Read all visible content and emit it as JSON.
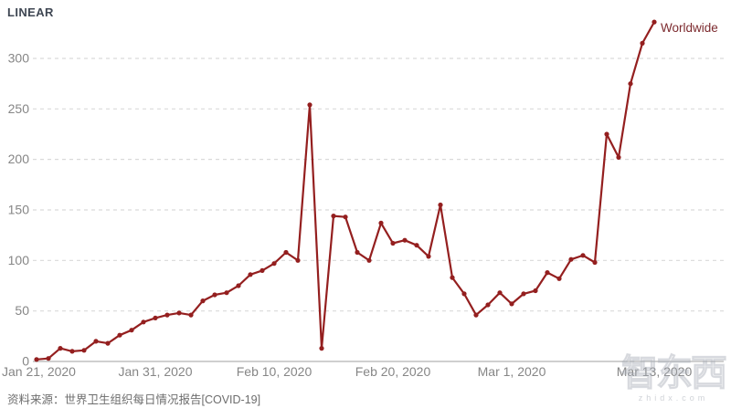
{
  "header": {
    "scale_label": "LINEAR"
  },
  "series_label": "Worldwide",
  "source_note": "资料来源：世界卫生组织每日情况报告[COVID-19]",
  "watermark": {
    "logo_text": "智东西",
    "domain_text": "zhidx.com"
  },
  "colors": {
    "line": "#941f1f",
    "series_label": "#7c2a2e",
    "grid": "#d9d9d9",
    "baseline": "#cfcfcf",
    "axis_text": "#868686",
    "title_text": "#3f4753",
    "source_text": "#6d6d6d"
  },
  "chart_data": {
    "type": "line",
    "title": "LINEAR",
    "xlabel": "",
    "ylabel": "",
    "x_start": "Jan 21, 2020",
    "x_end": "Mar 13, 2020",
    "frequency": "daily",
    "x_tick_labels": [
      "Jan 21, 2020",
      "Jan 31, 2020",
      "Feb 10, 2020",
      "Feb 20, 2020",
      "Mar 1, 2020",
      "Mar 13, 2020"
    ],
    "x_tick_day_index": [
      0,
      10,
      20,
      30,
      40,
      52
    ],
    "yticks": [
      0,
      50,
      100,
      150,
      200,
      250,
      300
    ],
    "ylim": [
      0,
      340
    ],
    "grid": "horizontal-dashed",
    "legend_position": "end-of-line",
    "series": [
      {
        "name": "Worldwide",
        "values": [
          2,
          3,
          13,
          10,
          11,
          20,
          18,
          26,
          31,
          39,
          43,
          46,
          48,
          46,
          60,
          66,
          68,
          75,
          86,
          90,
          97,
          108,
          100,
          254,
          13,
          144,
          143,
          108,
          100,
          137,
          117,
          120,
          115,
          104,
          155,
          83,
          67,
          46,
          56,
          68,
          57,
          67,
          70,
          88,
          82,
          101,
          105,
          98,
          225,
          202,
          275,
          315,
          336
        ]
      }
    ]
  }
}
